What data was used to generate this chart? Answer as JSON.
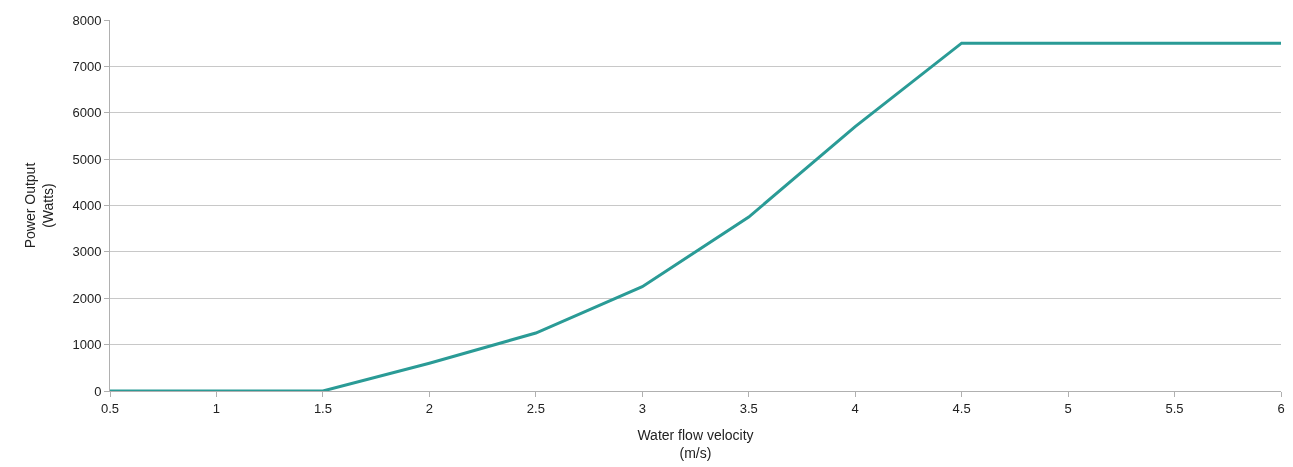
{
  "chart_data": {
    "type": "line",
    "xlabel": "Water flow velocity\n(m/s)",
    "ylabel": "Power Output\n(Watts)",
    "x": [
      0.5,
      1,
      1.5,
      2,
      2.5,
      3,
      3.5,
      4,
      4.5,
      5,
      5.5,
      6
    ],
    "series": [
      {
        "color": "#2a9b96",
        "values": [
          0,
          0,
          0,
          600,
          1250,
          2250,
          3750,
          5700,
          7500,
          7500,
          7500,
          7500
        ]
      }
    ],
    "xlim": [
      0.5,
      6
    ],
    "xticks": [
      0.5,
      1,
      1.5,
      2,
      2.5,
      3,
      3.5,
      4,
      4.5,
      5,
      5.5,
      6
    ],
    "ylim": [
      0,
      8000
    ],
    "yticks": [
      0,
      1000,
      2000,
      3000,
      4000,
      5000,
      6000,
      7000,
      8000
    ],
    "grid": "y",
    "marker": "none",
    "line_style": "solid"
  }
}
